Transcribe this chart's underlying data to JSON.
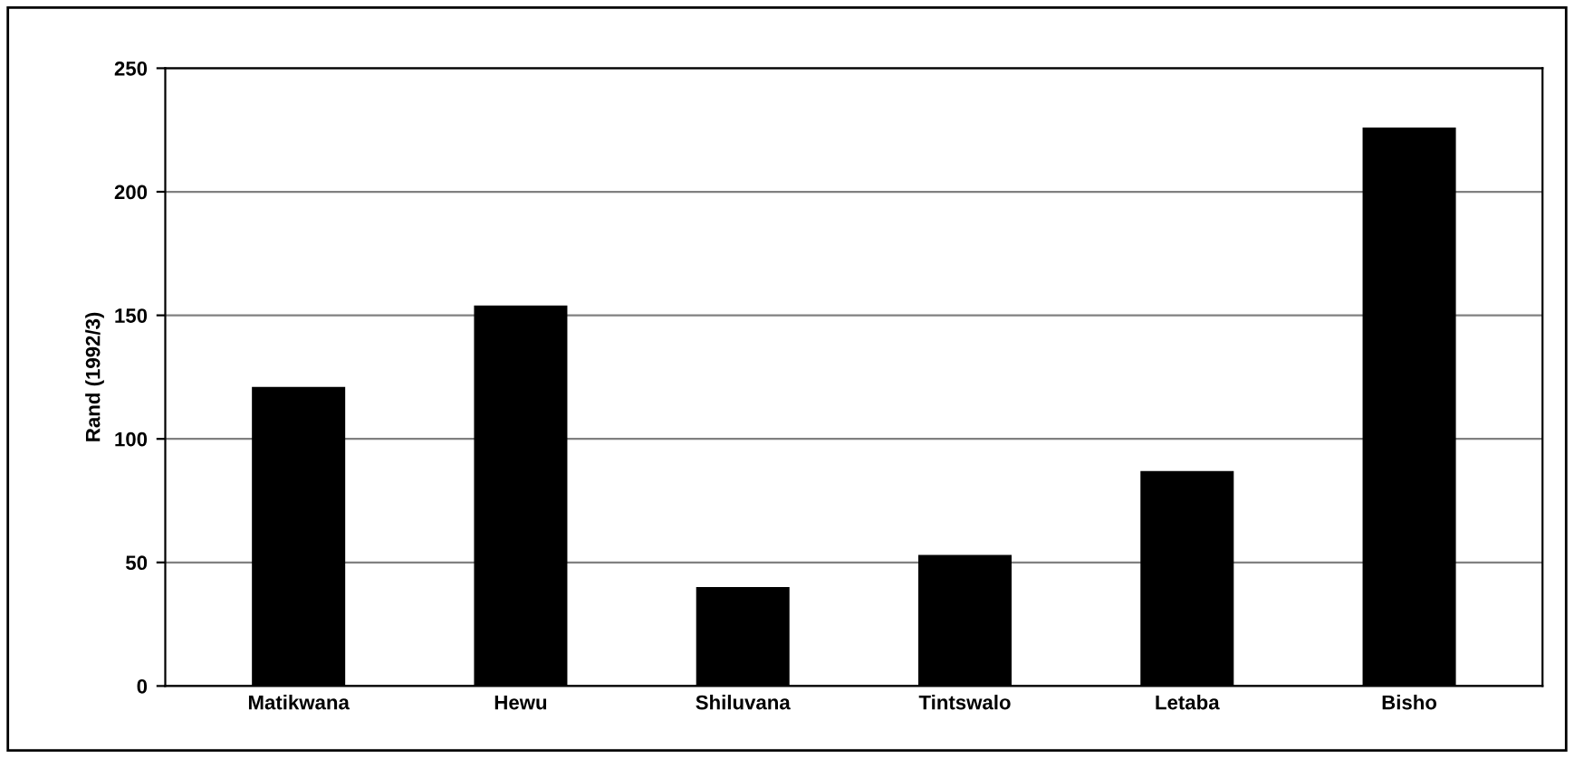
{
  "chart_data": {
    "type": "bar",
    "ylabel": "Rand (1992/3)",
    "categories": [
      "Matikwana",
      "Hewu",
      "Shiluvana",
      "Tintswalo",
      "Letaba",
      "Bisho"
    ],
    "values": [
      121,
      154,
      40,
      53,
      87,
      226
    ],
    "color": "#000000",
    "ylim": [
      0,
      250
    ],
    "yticks": [
      0,
      50,
      100,
      150,
      200,
      250
    ],
    "grid": "y",
    "legend": false
  }
}
